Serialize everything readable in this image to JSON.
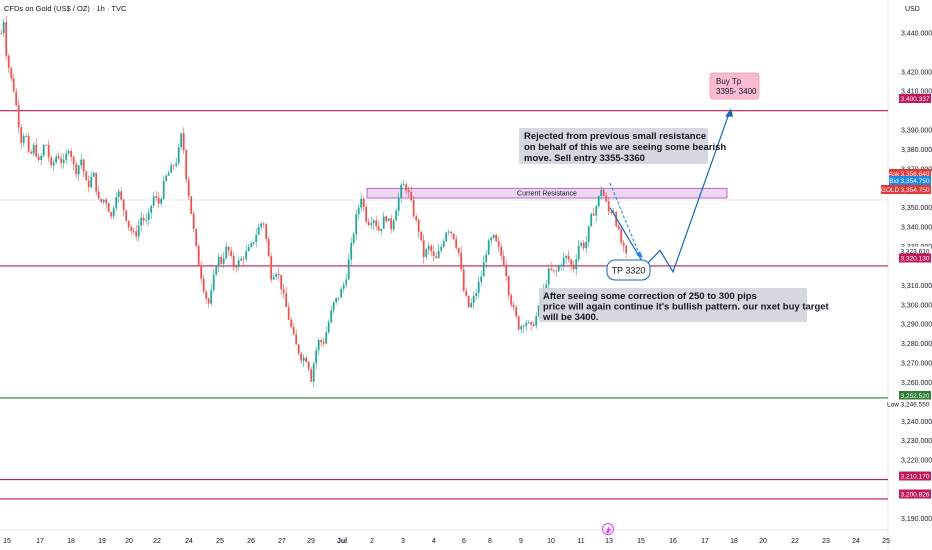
{
  "header": {
    "title": "CFDs on Gold (US$ / OZ) · 1h · TVC"
  },
  "currency": "USD",
  "chart_data": {
    "type": "candlestick",
    "title": "CFDs on Gold (US$ / OZ) · 1h · TVC",
    "y_axis": {
      "ticks": [
        3440,
        3420,
        3410,
        3390,
        3380,
        3370,
        3350,
        3340,
        3330,
        3310,
        3300,
        3290,
        3280,
        3270,
        3260,
        3240,
        3230,
        3220,
        3190
      ],
      "range": [
        3184,
        3457
      ]
    },
    "x_axis": {
      "ticks": [
        "15",
        "17",
        "18",
        "19",
        "20",
        "22",
        "24",
        "25",
        "26",
        "27",
        "29",
        "Jul",
        "2",
        "3",
        "4",
        "6",
        "8",
        "9",
        "10",
        "11",
        "13",
        "15",
        "16",
        "17",
        "18",
        "20",
        "22",
        "23",
        "24",
        "25"
      ]
    },
    "price_path": [
      [
        0,
        3440
      ],
      [
        3,
        3448
      ],
      [
        5,
        3430
      ],
      [
        9,
        3418
      ],
      [
        13,
        3410
      ],
      [
        17,
        3395
      ],
      [
        20,
        3385
      ],
      [
        24,
        3390
      ],
      [
        28,
        3375
      ],
      [
        33,
        3382
      ],
      [
        38,
        3372
      ],
      [
        44,
        3385
      ],
      [
        50,
        3370
      ],
      [
        56,
        3378
      ],
      [
        62,
        3372
      ],
      [
        68,
        3382
      ],
      [
        74,
        3368
      ],
      [
        80,
        3375
      ],
      [
        86,
        3360
      ],
      [
        92,
        3368
      ],
      [
        98,
        3352
      ],
      [
        104,
        3355
      ],
      [
        110,
        3345
      ],
      [
        116,
        3360
      ],
      [
        122,
        3350
      ],
      [
        128,
        3340
      ],
      [
        134,
        3335
      ],
      [
        140,
        3345
      ],
      [
        146,
        3342
      ],
      [
        152,
        3356
      ],
      [
        158,
        3352
      ],
      [
        164,
        3365
      ],
      [
        170,
        3370
      ],
      [
        176,
        3375
      ],
      [
        181,
        3390
      ],
      [
        184,
        3370
      ],
      [
        188,
        3355
      ],
      [
        192,
        3340
      ],
      [
        196,
        3325
      ],
      [
        200,
        3315
      ],
      [
        204,
        3305
      ],
      [
        208,
        3300
      ],
      [
        212,
        3312
      ],
      [
        216,
        3325
      ],
      [
        220,
        3322
      ],
      [
        226,
        3330
      ],
      [
        232,
        3320
      ],
      [
        238,
        3322
      ],
      [
        244,
        3326
      ],
      [
        250,
        3330
      ],
      [
        256,
        3338
      ],
      [
        262,
        3344
      ],
      [
        266,
        3330
      ],
      [
        270,
        3315
      ],
      [
        276,
        3318
      ],
      [
        282,
        3305
      ],
      [
        288,
        3292
      ],
      [
        294,
        3280
      ],
      [
        300,
        3273
      ],
      [
        306,
        3272
      ],
      [
        310,
        3262
      ],
      [
        314,
        3275
      ],
      [
        318,
        3282
      ],
      [
        322,
        3280
      ],
      [
        326,
        3288
      ],
      [
        332,
        3300
      ],
      [
        338,
        3305
      ],
      [
        344,
        3312
      ],
      [
        350,
        3330
      ],
      [
        355,
        3345
      ],
      [
        360,
        3356
      ],
      [
        366,
        3342
      ],
      [
        372,
        3345
      ],
      [
        378,
        3338
      ],
      [
        384,
        3346
      ],
      [
        390,
        3340
      ],
      [
        396,
        3352
      ],
      [
        401,
        3362
      ],
      [
        406,
        3360
      ],
      [
        410,
        3352
      ],
      [
        414,
        3344
      ],
      [
        418,
        3338
      ],
      [
        422,
        3325
      ],
      [
        428,
        3330
      ],
      [
        434,
        3322
      ],
      [
        440,
        3330
      ],
      [
        446,
        3340
      ],
      [
        452,
        3336
      ],
      [
        458,
        3326
      ],
      [
        462,
        3308
      ],
      [
        468,
        3298
      ],
      [
        474,
        3305
      ],
      [
        480,
        3315
      ],
      [
        486,
        3330
      ],
      [
        492,
        3335
      ],
      [
        498,
        3328
      ],
      [
        504,
        3320
      ],
      [
        508,
        3305
      ],
      [
        512,
        3298
      ],
      [
        518,
        3288
      ],
      [
        524,
        3292
      ],
      [
        530,
        3288
      ],
      [
        536,
        3295
      ],
      [
        542,
        3306
      ],
      [
        548,
        3318
      ],
      [
        554,
        3316
      ],
      [
        560,
        3322
      ],
      [
        566,
        3325
      ],
      [
        572,
        3318
      ],
      [
        578,
        3332
      ],
      [
        584,
        3330
      ],
      [
        590,
        3345
      ],
      [
        596,
        3352
      ],
      [
        600,
        3360
      ],
      [
        604,
        3354
      ],
      [
        608,
        3347
      ],
      [
        612,
        3350
      ],
      [
        616,
        3340
      ],
      [
        620,
        3332
      ],
      [
        625,
        3325
      ]
    ],
    "horizontal_levels": [
      {
        "value": 3400,
        "color": "#c2185b"
      },
      {
        "value": 3320,
        "color": "#c2185b"
      },
      {
        "value": 3252,
        "color": "#2e7d32"
      },
      {
        "value": 3210,
        "color": "#c2185b"
      },
      {
        "value": 3200,
        "color": "#c2185b"
      },
      {
        "value": 3354,
        "color": "#e0e0e0"
      }
    ],
    "zone": {
      "label": "Current Resistance",
      "from": 3355,
      "to": 3360,
      "color": "#ce93d8"
    },
    "projection": [
      {
        "x": 610,
        "y": 3350
      },
      {
        "x": 645,
        "y": 3320
      },
      {
        "x": 660,
        "y": 3328
      },
      {
        "x": 673,
        "y": 3317
      },
      {
        "x": 730,
        "y": 3400
      }
    ],
    "badges": {
      "level_3400": {
        "text": "3,400.337",
        "color": "#c2185b"
      },
      "ask": {
        "label": "Ask",
        "text": "3,356.640",
        "color": "#e53935"
      },
      "bid": {
        "label": "Bid",
        "text": "3,354.750",
        "color": "#1e88e5"
      },
      "gold": {
        "label": "GOLD",
        "text": "3,354.750",
        "color": "#e53935"
      },
      "price_3323": {
        "text": "3,323.610",
        "color": "#ffffff"
      },
      "level_3320": {
        "text": "3,320.130",
        "color": "#c2185b"
      },
      "level_3252": {
        "text": "3,252.520",
        "color": "#2e7d32"
      },
      "low": {
        "label": "Low",
        "text": "3,246.550",
        "color": "#ffffff"
      },
      "level_3210": {
        "text": "3,210.170",
        "color": "#c2185b"
      },
      "level_3200": {
        "text": "3,200.826",
        "color": "#c2185b"
      }
    },
    "annotations": {
      "rejected": [
        "Rejected from previous small resistance",
        "on behalf of this we are seeing some bearish",
        "move. Sell entry 3355-3360"
      ],
      "buy_tp": [
        "Buy Tp",
        "3395- 3400"
      ],
      "tp": "TP 3320",
      "after": [
        "After seeing some correction of 250 to 300 pips",
        "price will again continue it's bullish pattern. our nxet buy target",
        "will be 3400."
      ]
    }
  }
}
